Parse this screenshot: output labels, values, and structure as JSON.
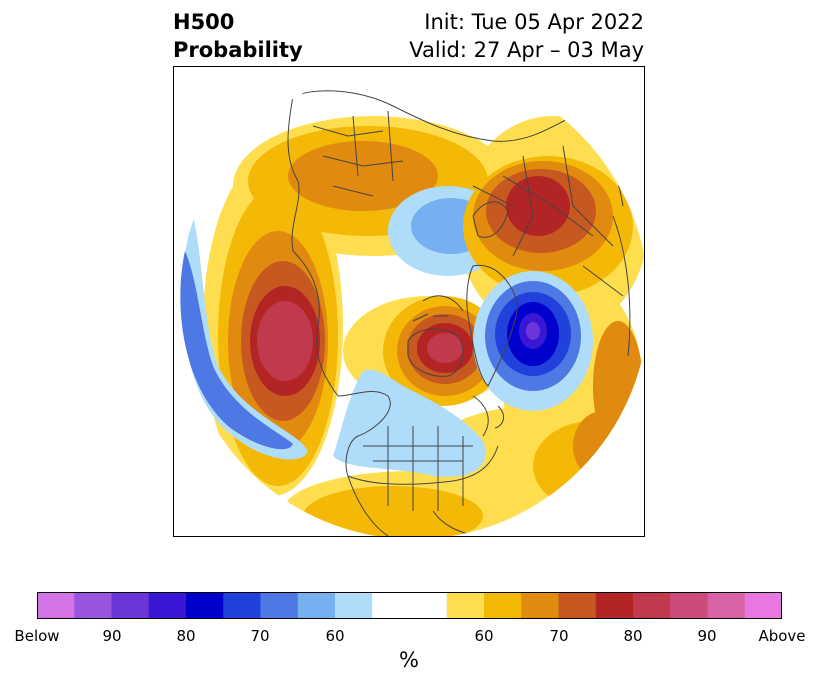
{
  "header": {
    "title_line1": "H500",
    "title_line2": "Probability",
    "init_text": "Init: Tue 05 Apr 2022",
    "valid_text": "Valid: 27 Apr – 03 May"
  },
  "colorbar": {
    "colors": [
      "#d473e6",
      "#9a55e0",
      "#6a36d9",
      "#3a17d4",
      "#0000cc",
      "#2240dc",
      "#4e78e4",
      "#76b0f0",
      "#aedcf9",
      "#ffffff",
      "#ffffff",
      "#fede4f",
      "#f4b806",
      "#e08a10",
      "#c65820",
      "#b32525",
      "#c0394c",
      "#cb4c7b",
      "#d962a6",
      "#e878e0"
    ],
    "tick_labels": [
      "Below",
      "90",
      "80",
      "70",
      "60",
      "60",
      "70",
      "80",
      "90",
      "Above"
    ],
    "unit_label": "%"
  },
  "map": {
    "projection": "north-polar-stereographic",
    "anomaly_regions": [
      {
        "name": "west-pacific-above",
        "category": "above",
        "peak": 80
      },
      {
        "name": "north-pacific-below",
        "category": "below",
        "peak": 70
      },
      {
        "name": "hudson-bay-above",
        "category": "above",
        "peak": 80
      },
      {
        "name": "greenland-below",
        "category": "below",
        "peak": 90
      },
      {
        "name": "arctic-siberia-below",
        "category": "below",
        "peak": 60
      },
      {
        "name": "eastern-europe-above",
        "category": "above",
        "peak": 80
      },
      {
        "name": "east-asia-above",
        "category": "above",
        "peak": 70
      },
      {
        "name": "north-america-below",
        "category": "below",
        "peak": 60
      },
      {
        "name": "southern-us-above",
        "category": "above",
        "peak": 60
      }
    ]
  }
}
